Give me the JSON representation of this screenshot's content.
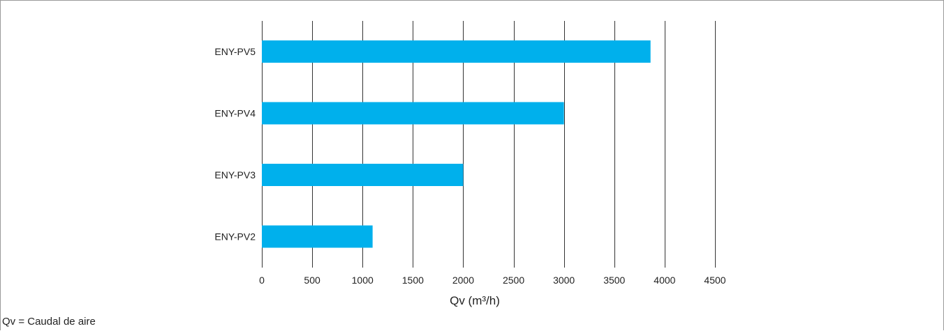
{
  "chart_data": {
    "type": "bar",
    "orientation": "horizontal",
    "categories": [
      "ENY-PV5",
      "ENY-PV4",
      "ENY-PV3",
      "ENY-PV2"
    ],
    "values": [
      3860,
      3000,
      2000,
      1100
    ],
    "xlabel": "Qv (m³/h)",
    "ylabel": "",
    "xlim": [
      0,
      4500
    ],
    "xticks": [
      0,
      500,
      1000,
      1500,
      2000,
      2500,
      3000,
      3500,
      4000,
      4500
    ],
    "grid": "vertical",
    "bar_color": "#00b0ec"
  },
  "footnote": "Qv = Caudal de aire"
}
